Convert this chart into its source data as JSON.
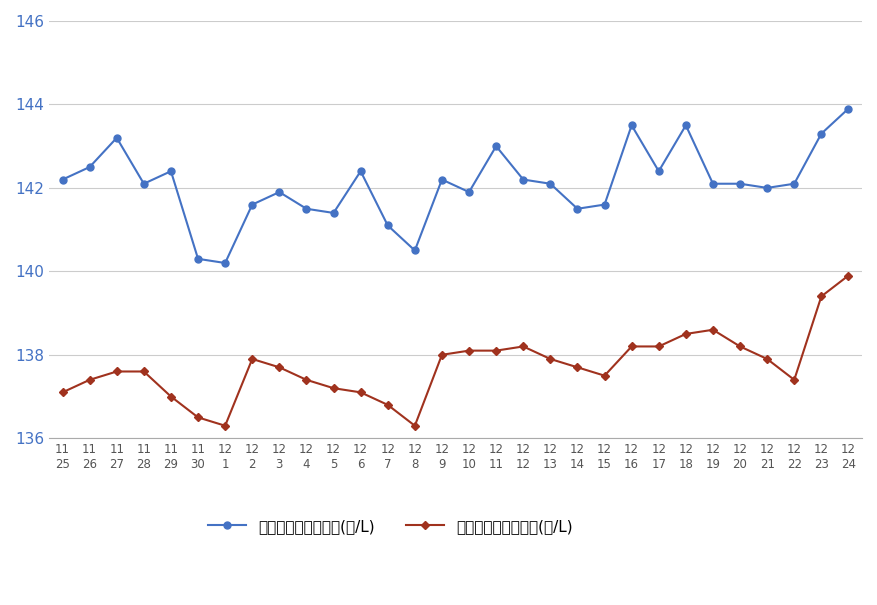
{
  "x_labels_line1": [
    "11",
    "11",
    "11",
    "11",
    "11",
    "11",
    "12",
    "12",
    "12",
    "12",
    "12",
    "12",
    "12",
    "12",
    "12",
    "12",
    "12",
    "12",
    "12",
    "12",
    "12",
    "12",
    "12",
    "12",
    "12",
    "12",
    "12",
    "12",
    "12",
    "12"
  ],
  "x_labels_line2": [
    "25",
    "26",
    "27",
    "28",
    "29",
    "30",
    "1",
    "2",
    "3",
    "4",
    "5",
    "6",
    "7",
    "8",
    "9",
    "10",
    "11",
    "12",
    "13",
    "14",
    "15",
    "16",
    "17",
    "18",
    "19",
    "20",
    "21",
    "22",
    "23",
    "24"
  ],
  "blue_values": [
    142.2,
    142.5,
    143.2,
    142.1,
    142.4,
    140.3,
    140.2,
    141.6,
    141.9,
    141.5,
    141.4,
    142.4,
    141.1,
    140.5,
    142.2,
    141.9,
    143.0,
    142.2,
    142.1,
    141.5,
    141.6,
    143.5,
    142.4,
    143.5,
    142.1,
    142.1,
    142.0,
    142.1,
    143.3,
    143.9
  ],
  "red_values": [
    137.1,
    137.4,
    137.6,
    137.6,
    137.0,
    136.5,
    136.3,
    137.9,
    137.7,
    137.4,
    137.2,
    137.1,
    136.8,
    136.3,
    138.0,
    138.1,
    138.1,
    138.2,
    137.9,
    137.7,
    137.5,
    138.2,
    138.2,
    138.5,
    138.6,
    138.2,
    137.9,
    137.4,
    139.4,
    139.9
  ],
  "blue_color": "#4472c4",
  "red_color": "#a0321e",
  "ylim": [
    136,
    146
  ],
  "yticks": [
    136,
    138,
    140,
    142,
    144,
    146
  ],
  "legend_blue": "レギュラー看板価格(円/L)",
  "legend_red": "レギュラー実売価格(円/L)",
  "background_color": "#ffffff",
  "grid_color": "#cccccc"
}
